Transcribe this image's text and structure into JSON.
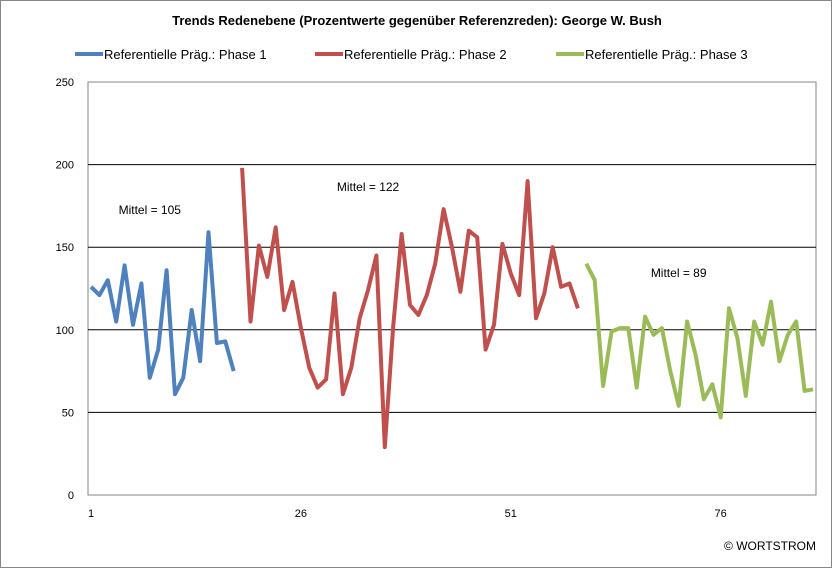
{
  "chart_data": {
    "type": "line",
    "title": "Trends  Redenebene (Prozentwerte gegenüber Referenzreden):  George W. Bush",
    "xlabel": "",
    "ylabel": "",
    "ylim": [
      0,
      250
    ],
    "xlim": [
      1,
      87
    ],
    "yticks": [
      0,
      50,
      100,
      150,
      200,
      250
    ],
    "xticks": [
      1,
      26,
      51,
      76
    ],
    "grid": "horizontal",
    "legend_position": "top",
    "series": [
      {
        "name": "Referentielle Präg.: Phase 1",
        "color": "#4f81bd",
        "x": [
          1,
          2,
          3,
          4,
          5,
          6,
          7,
          8,
          9,
          10,
          11,
          12,
          13,
          14,
          15,
          16,
          17,
          18
        ],
        "values": [
          126,
          121,
          130,
          105,
          139,
          103,
          128,
          71,
          88,
          136,
          61,
          71,
          112,
          81,
          159,
          92,
          93,
          75
        ]
      },
      {
        "name": "Referentielle Präg.: Phase 2",
        "color": "#c0504d",
        "x": [
          19,
          20,
          21,
          22,
          23,
          24,
          25,
          26,
          27,
          28,
          29,
          30,
          31,
          32,
          33,
          34,
          35,
          36,
          37,
          38,
          39,
          40,
          41,
          42,
          43,
          44,
          45,
          46,
          47,
          48,
          49,
          50,
          51,
          52,
          53,
          54,
          55,
          56,
          57,
          58,
          59
        ],
        "values": [
          198,
          105,
          151,
          132,
          162,
          112,
          129,
          101,
          77,
          65,
          70,
          122,
          61,
          77,
          107,
          124,
          145,
          29,
          102,
          158,
          115,
          109,
          121,
          140,
          173,
          150,
          123,
          160,
          156,
          88,
          103,
          152,
          134,
          121,
          190,
          107,
          122,
          150,
          126,
          128,
          113
        ]
      },
      {
        "name": "Referentielle Präg.: Phase 3",
        "color": "#9bbb59",
        "x": [
          60,
          61,
          62,
          63,
          64,
          65,
          66,
          67,
          68,
          69,
          70,
          71,
          72,
          73,
          74,
          75,
          76,
          77,
          78,
          79,
          80,
          81,
          82,
          83,
          84,
          85,
          86,
          87
        ],
        "values": [
          140,
          130,
          66,
          99,
          101,
          101,
          65,
          108,
          97,
          101,
          75,
          54,
          105,
          85,
          58,
          67,
          47,
          113,
          95,
          60,
          105,
          91,
          117,
          81,
          97,
          105,
          63,
          64
        ]
      }
    ],
    "annotations": [
      {
        "text": "Mittel = 105",
        "x": 8,
        "y": 170
      },
      {
        "text": "Mittel = 122",
        "x": 34,
        "y": 184
      },
      {
        "text": "Mittel = 89",
        "x": 71,
        "y": 132
      }
    ],
    "credit": "© WORTSTROM"
  }
}
